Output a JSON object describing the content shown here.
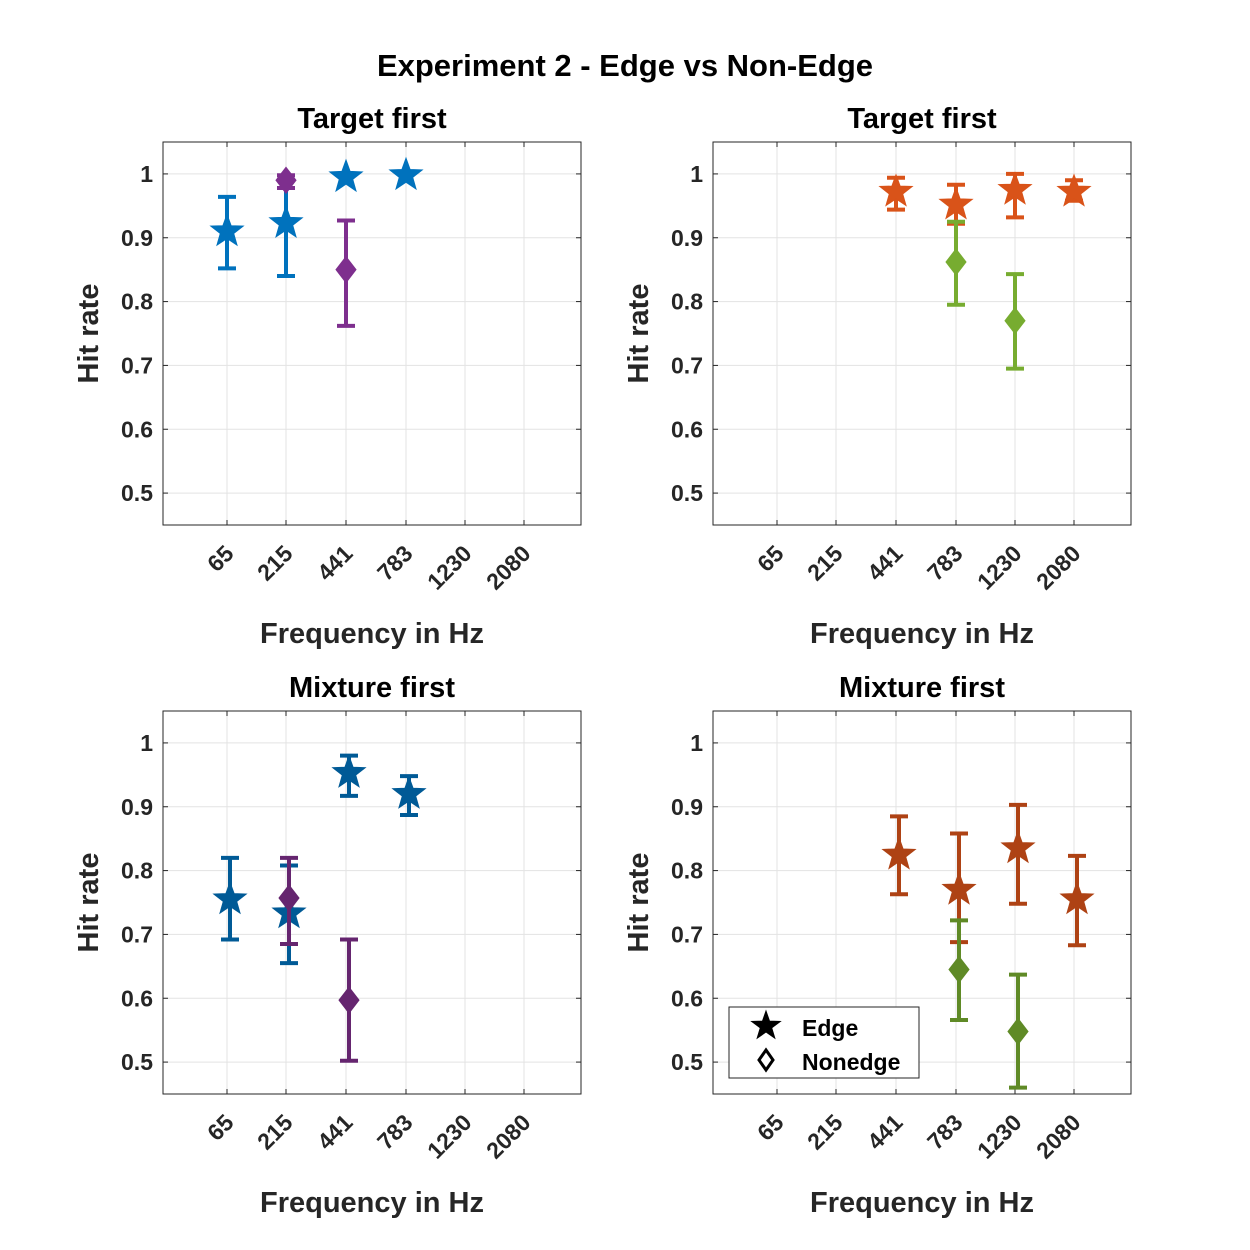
{
  "figure_title": "Experiment 2 - Edge vs Non-Edge",
  "legend": {
    "location": "bottom-left",
    "entries": [
      {
        "label": "Edge",
        "marker": "star-icon"
      },
      {
        "label": "Nonedge",
        "marker": "diamond-icon"
      }
    ]
  },
  "chart_data": [
    {
      "type": "scatter",
      "title": "Target first",
      "xlabel": "Frequency in Hz",
      "ylabel": "Hit rate",
      "categories": [
        "65",
        "215",
        "441",
        "783",
        "1230",
        "2080"
      ],
      "ylim": [
        0.45,
        1.05
      ],
      "yticks": [
        "0.5",
        "0.6",
        "0.7",
        "0.8",
        "0.9",
        "1"
      ],
      "grid": true,
      "series": [
        {
          "marker": "star",
          "color": "#0072BD",
          "points": [
            {
              "x": "65",
              "y": 0.91,
              "lo": 0.852,
              "hi": 0.964
            },
            {
              "x": "215",
              "y": 0.923,
              "lo": 0.84,
              "hi": 0.99
            },
            {
              "x": "441",
              "y": 0.995,
              "lo": 0.995,
              "hi": 0.995
            },
            {
              "x": "783",
              "y": 0.998,
              "lo": 0.998,
              "hi": 0.998
            }
          ]
        },
        {
          "marker": "diamond",
          "color": "#7E2F8E",
          "points": [
            {
              "x": "215",
              "y": 0.99,
              "lo": 0.978,
              "hi": 0.998
            },
            {
              "x": "441",
              "y": 0.85,
              "lo": 0.762,
              "hi": 0.927
            }
          ]
        }
      ]
    },
    {
      "type": "scatter",
      "title": "Target first",
      "xlabel": "Frequency in Hz",
      "ylabel": "Hit rate",
      "categories": [
        "65",
        "215",
        "441",
        "783",
        "1230",
        "2080"
      ],
      "ylim": [
        0.45,
        1.05
      ],
      "yticks": [
        "0.5",
        "0.6",
        "0.7",
        "0.8",
        "0.9",
        "1"
      ],
      "grid": true,
      "series": [
        {
          "marker": "star",
          "color": "#D95319",
          "points": [
            {
              "x": "441",
              "y": 0.972,
              "lo": 0.944,
              "hi": 0.994
            },
            {
              "x": "783",
              "y": 0.952,
              "lo": 0.922,
              "hi": 0.983
            },
            {
              "x": "1230",
              "y": 0.975,
              "lo": 0.932,
              "hi": 1.0
            },
            {
              "x": "2080",
              "y": 0.972,
              "lo": 0.958,
              "hi": 0.99
            }
          ]
        },
        {
          "marker": "diamond",
          "color": "#77AC30",
          "points": [
            {
              "x": "783",
              "y": 0.862,
              "lo": 0.795,
              "hi": 0.925
            },
            {
              "x": "1230",
              "y": 0.77,
              "lo": 0.695,
              "hi": 0.843
            }
          ]
        }
      ]
    },
    {
      "type": "scatter",
      "title": "Mixture first",
      "xlabel": "Frequency in Hz",
      "ylabel": "Hit rate",
      "categories": [
        "65",
        "215",
        "441",
        "783",
        "1230",
        "2080"
      ],
      "ylim": [
        0.45,
        1.05
      ],
      "yticks": [
        "0.5",
        "0.6",
        "0.7",
        "0.8",
        "0.9",
        "1"
      ],
      "grid": true,
      "series": [
        {
          "marker": "star",
          "color": "#005A96",
          "points": [
            {
              "x": "65",
              "y": 0.755,
              "lo": 0.692,
              "hi": 0.82
            },
            {
              "x": "215",
              "y": 0.733,
              "lo": 0.655,
              "hi": 0.808
            },
            {
              "x": "441",
              "y": 0.953,
              "lo": 0.917,
              "hi": 0.98
            },
            {
              "x": "783",
              "y": 0.92,
              "lo": 0.887,
              "hi": 0.948
            }
          ]
        },
        {
          "marker": "diamond",
          "color": "#65256F",
          "points": [
            {
              "x": "215",
              "y": 0.757,
              "lo": 0.685,
              "hi": 0.82
            },
            {
              "x": "441",
              "y": 0.597,
              "lo": 0.502,
              "hi": 0.692
            }
          ]
        }
      ]
    },
    {
      "type": "scatter",
      "title": "Mixture first",
      "xlabel": "Frequency in Hz",
      "ylabel": "Hit rate",
      "categories": [
        "65",
        "215",
        "441",
        "783",
        "1230",
        "2080"
      ],
      "ylim": [
        0.45,
        1.05
      ],
      "yticks": [
        "0.5",
        "0.6",
        "0.7",
        "0.8",
        "0.9",
        "1"
      ],
      "grid": true,
      "series": [
        {
          "marker": "star",
          "color": "#AE4214",
          "points": [
            {
              "x": "441",
              "y": 0.825,
              "lo": 0.763,
              "hi": 0.885
            },
            {
              "x": "783",
              "y": 0.77,
              "lo": 0.688,
              "hi": 0.858
            },
            {
              "x": "1230",
              "y": 0.835,
              "lo": 0.748,
              "hi": 0.903
            },
            {
              "x": "2080",
              "y": 0.755,
              "lo": 0.683,
              "hi": 0.823
            }
          ]
        },
        {
          "marker": "diamond",
          "color": "#5F8A26",
          "points": [
            {
              "x": "783",
              "y": 0.645,
              "lo": 0.566,
              "hi": 0.722
            },
            {
              "x": "1230",
              "y": 0.548,
              "lo": 0.46,
              "hi": 0.637
            }
          ]
        }
      ]
    }
  ]
}
